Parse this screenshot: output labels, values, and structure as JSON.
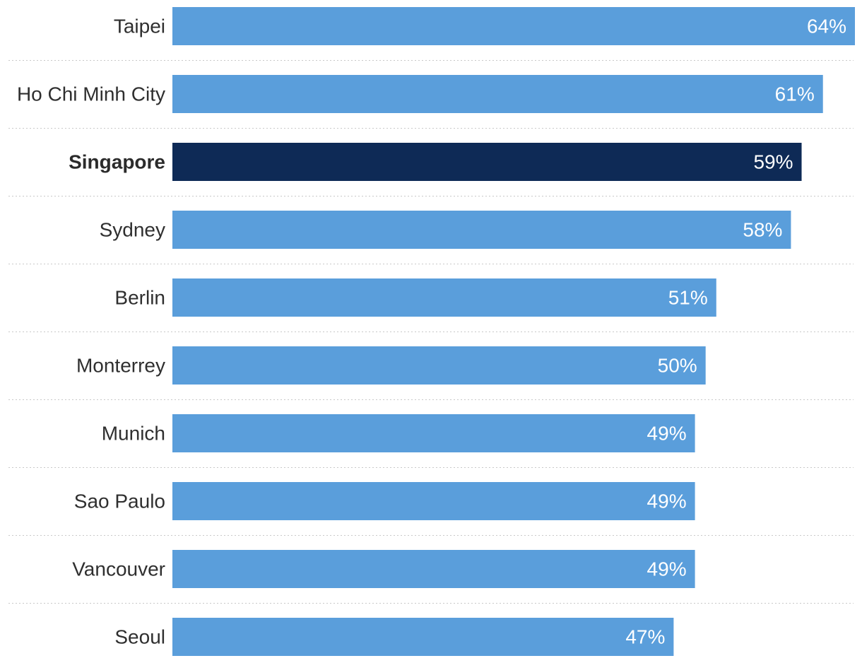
{
  "chart_data": {
    "type": "bar",
    "orientation": "horizontal",
    "categories": [
      "Taipei",
      "Ho Chi Minh City",
      "Singapore",
      "Sydney",
      "Berlin",
      "Monterrey",
      "Munich",
      "Sao Paulo",
      "Vancouver",
      "Seoul"
    ],
    "values": [
      64,
      61,
      59,
      58,
      51,
      50,
      49,
      49,
      49,
      47
    ],
    "value_labels": [
      "64%",
      "61%",
      "59%",
      "58%",
      "51%",
      "50%",
      "49%",
      "49%",
      "49%",
      "47%"
    ],
    "highlight": "Singapore",
    "xlim": [
      0,
      64
    ],
    "unit": "%",
    "colors": {
      "bar": "#5a9edb",
      "highlight_bar": "#0e2a56",
      "value_text": "#ffffff",
      "label_text": "#2f2f2f",
      "separator": "#c9c9c9"
    }
  }
}
